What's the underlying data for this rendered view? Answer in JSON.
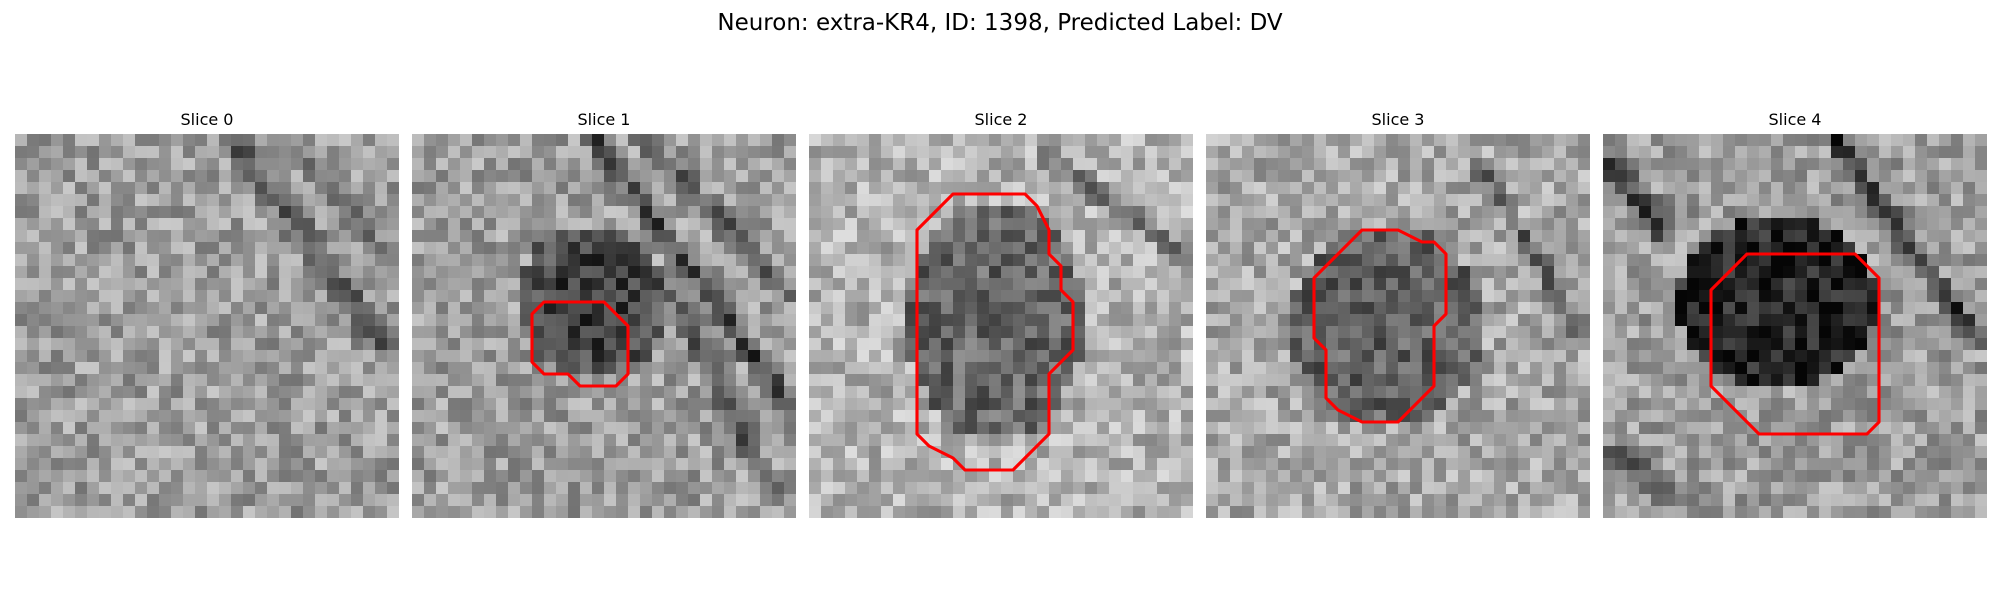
{
  "figure": {
    "title": "Neuron: extra-KR4, ID: 1398, Predicted Label: DV"
  },
  "slices": [
    {
      "title": "Slice 0",
      "has_contour": false
    },
    {
      "title": "Slice 1",
      "has_contour": true
    },
    {
      "title": "Slice 2",
      "has_contour": true
    },
    {
      "title": "Slice 3",
      "has_contour": true
    },
    {
      "title": "Slice 4",
      "has_contour": true
    }
  ],
  "contour_color": "#ff0000",
  "colormap": "gray"
}
